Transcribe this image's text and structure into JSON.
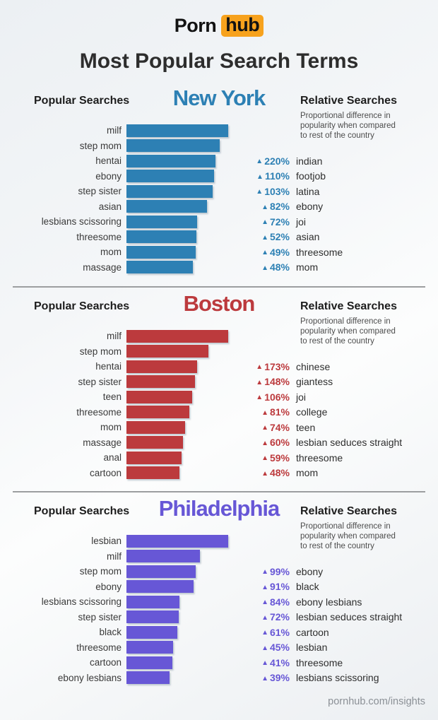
{
  "page": {
    "logo": {
      "text_black": "Porn",
      "text_badge": "hub",
      "badge_color": "#f7a21d"
    },
    "title": "Most Popular Search Terms",
    "footer_link": "pornhub.com/insights"
  },
  "sections": [
    {
      "city": "New York",
      "slug": "new-york",
      "accent": "#2d80b4",
      "popular_label": "Popular Searches",
      "relative_label": "Relative Searches",
      "relative_subtitle": [
        "Proportional difference in",
        "popularity when compared",
        "to rest of the country"
      ]
    },
    {
      "city": "Boston",
      "slug": "boston",
      "accent": "#bc3a3d",
      "popular_label": "Popular Searches",
      "relative_label": "Relative Searches",
      "relative_subtitle": [
        "Proportional difference in",
        "popularity when compared",
        "to rest of the country"
      ]
    },
    {
      "city": "Philadelphia",
      "slug": "philadelphia",
      "accent": "#6757d6",
      "popular_label": "Popular Searches",
      "relative_label": "Relative Searches",
      "relative_subtitle": [
        "Proportional difference in",
        "popularity when compared",
        "to rest of the country"
      ]
    }
  ],
  "chart_data": [
    {
      "type": "bar",
      "orientation": "horizontal",
      "title": "New York",
      "xlabel": "",
      "ylabel": "Popular Searches",
      "axis_shown": false,
      "values_unit": "relative search popularity (bar length in px; no numeric axis shown)",
      "bar_color": "#2d80b4",
      "categories": [
        "milf",
        "step mom",
        "hentai",
        "ebony",
        "step sister",
        "asian",
        "lesbians scissoring",
        "threesome",
        "mom",
        "massage"
      ],
      "values": [
        144,
        132,
        126,
        124,
        122,
        114,
        100,
        99,
        98,
        94
      ],
      "change_direction": "up",
      "relative_searches": [
        {
          "change_label": "220%",
          "term": "indian"
        },
        {
          "change_label": "110%",
          "term": "footjob"
        },
        {
          "change_label": "103%",
          "term": "latina"
        },
        {
          "change_label": "82%",
          "term": "ebony"
        },
        {
          "change_label": "72%",
          "term": "joi"
        },
        {
          "change_label": "52%",
          "term": "asian"
        },
        {
          "change_label": "49%",
          "term": "threesome"
        },
        {
          "change_label": "48%",
          "term": "mom"
        }
      ]
    },
    {
      "type": "bar",
      "orientation": "horizontal",
      "title": "Boston",
      "xlabel": "",
      "ylabel": "Popular Searches",
      "axis_shown": false,
      "values_unit": "relative search popularity (bar length in px; no numeric axis shown)",
      "bar_color": "#bc3a3d",
      "categories": [
        "milf",
        "step mom",
        "hentai",
        "step sister",
        "teen",
        "threesome",
        "mom",
        "massage",
        "anal",
        "cartoon"
      ],
      "values": [
        144,
        116,
        100,
        97,
        93,
        89,
        83,
        80,
        78,
        75
      ],
      "change_direction": "up",
      "relative_searches": [
        {
          "change_label": "173%",
          "term": "chinese"
        },
        {
          "change_label": "148%",
          "term": "giantess"
        },
        {
          "change_label": "106%",
          "term": "joi"
        },
        {
          "change_label": "81%",
          "term": "college"
        },
        {
          "change_label": "74%",
          "term": "teen"
        },
        {
          "change_label": "60%",
          "term": "lesbian seduces straight"
        },
        {
          "change_label": "59%",
          "term": "threesome"
        },
        {
          "change_label": "48%",
          "term": "mom"
        }
      ]
    },
    {
      "type": "bar",
      "orientation": "horizontal",
      "title": "Philadelphia",
      "xlabel": "",
      "ylabel": "Popular Searches",
      "axis_shown": false,
      "values_unit": "relative search popularity (bar length in px; no numeric axis shown)",
      "bar_color": "#6757d6",
      "categories": [
        "lesbian",
        "milf",
        "step mom",
        "ebony",
        "lesbians scissoring",
        "step sister",
        "black",
        "threesome",
        "cartoon",
        "ebony lesbians"
      ],
      "values": [
        144,
        104,
        98,
        95,
        75,
        74,
        72,
        66,
        65,
        61
      ],
      "change_direction": "up",
      "relative_searches": [
        {
          "change_label": "99%",
          "term": "ebony"
        },
        {
          "change_label": "91%",
          "term": "black"
        },
        {
          "change_label": "84%",
          "term": "ebony lesbians"
        },
        {
          "change_label": "72%",
          "term": "lesbian seduces straight"
        },
        {
          "change_label": "61%",
          "term": "cartoon"
        },
        {
          "change_label": "45%",
          "term": "lesbian"
        },
        {
          "change_label": "41%",
          "term": "threesome"
        },
        {
          "change_label": "39%",
          "term": "lesbians scissoring"
        }
      ]
    }
  ]
}
